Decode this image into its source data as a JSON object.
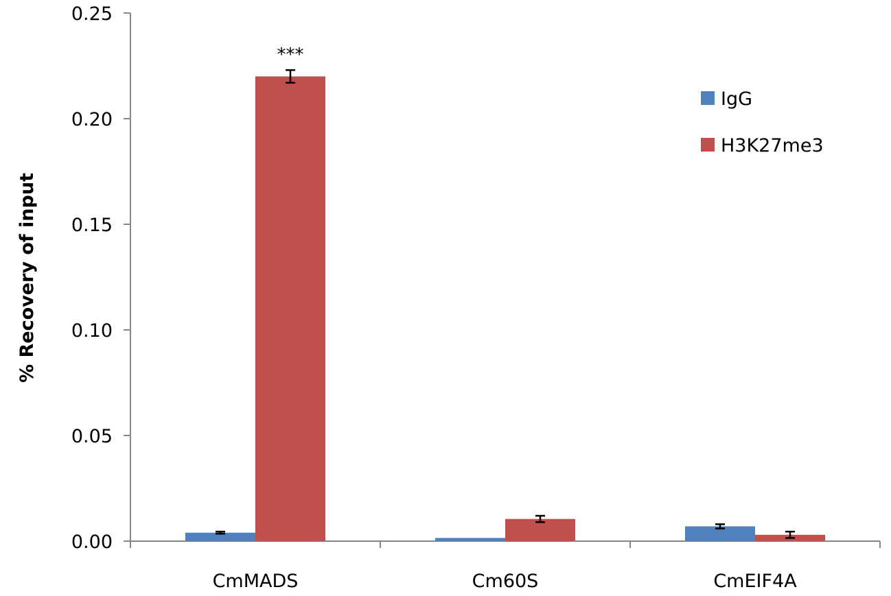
{
  "chart_data": {
    "type": "bar",
    "categories": [
      "CmMADS",
      "Cm60S",
      "CmEIF4A"
    ],
    "series": [
      {
        "name": "IgG",
        "color": "#4f81bd",
        "values": [
          0.004,
          0.0015,
          0.007
        ],
        "errors": [
          0.0005,
          0.0,
          0.001
        ]
      },
      {
        "name": "H3K27me3",
        "color": "#c0504d",
        "values": [
          0.22,
          0.0105,
          0.003
        ],
        "errors": [
          0.003,
          0.0015,
          0.0015
        ]
      }
    ],
    "ylabel": "% Recovery of input",
    "xlabel": "",
    "title": "",
    "ylim": [
      0,
      0.25
    ],
    "yticks": [
      "0.00",
      "0.05",
      "0.10",
      "0.15",
      "0.20",
      "0.25"
    ],
    "ytick_values": [
      0,
      0.05,
      0.1,
      0.15,
      0.2,
      0.25
    ],
    "grid": false,
    "legend_position": "top-right",
    "annotations": [
      {
        "category": "CmMADS",
        "series": "H3K27me3",
        "text": "***"
      }
    ]
  }
}
